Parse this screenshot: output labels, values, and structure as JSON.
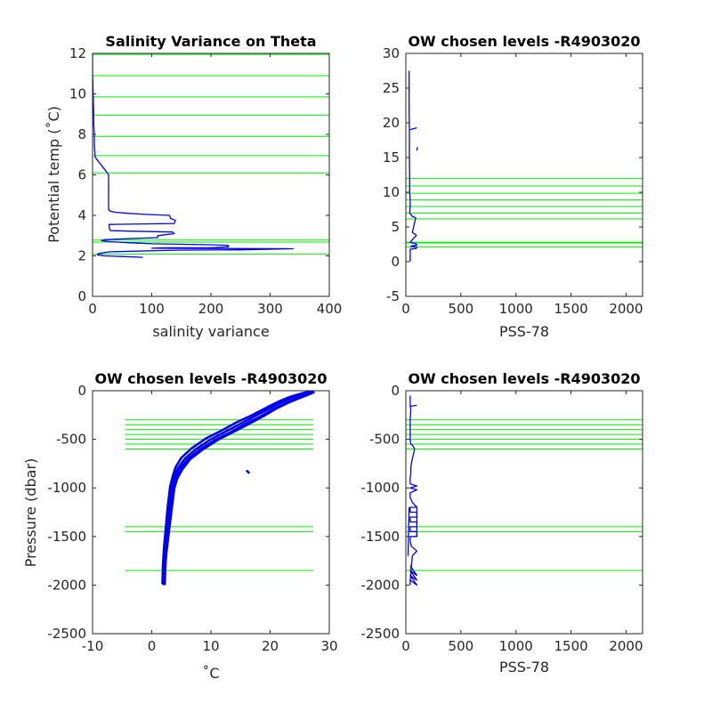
{
  "figure": {
    "background": "#ffffff"
  },
  "colors": {
    "data": "#0000ee",
    "levels": "#00ee00",
    "axis": "#262626"
  },
  "chart_data": [
    {
      "type": "line",
      "title": "Salinity Variance on Theta",
      "xlabel": "salinity variance",
      "ylabel": "Potential temp (˚C)",
      "xlim": [
        0,
        400
      ],
      "ylim": [
        0,
        12
      ],
      "xticks": [
        0,
        100,
        200,
        300,
        400
      ],
      "yticks": [
        0,
        2,
        4,
        6,
        8,
        10,
        12
      ],
      "xtick_labels": [
        "0",
        "100",
        "200",
        "300",
        "400"
      ],
      "ytick_labels": [
        "0",
        "2",
        "4",
        "6",
        "8",
        "10",
        "12"
      ],
      "grid": false,
      "series": [
        {
          "x": [
            0,
            0,
            1,
            2,
            2,
            3,
            3,
            4,
            5,
            25,
            27,
            27,
            27,
            30,
            40,
            60,
            90,
            130,
            132,
            140,
            138,
            28,
            28,
            30,
            60,
            100,
            135,
            138,
            110,
            110,
            60,
            20,
            15,
            30,
            60,
            100,
            200,
            229,
            230,
            200,
            120,
            100,
            150,
            250,
            339,
            250,
            140,
            30,
            10,
            8,
            20,
            50,
            85
          ],
          "y": [
            12,
            11,
            10,
            9,
            8.5,
            8,
            7.5,
            7,
            6.85,
            6.1,
            6.0,
            5.0,
            4.3,
            4.2,
            4.15,
            4.1,
            4.05,
            4.0,
            3.85,
            3.75,
            3.6,
            3.55,
            3.4,
            3.25,
            3.22,
            3.2,
            3.18,
            3.1,
            3.0,
            2.9,
            2.85,
            2.8,
            2.75,
            2.7,
            2.65,
            2.6,
            2.55,
            2.52,
            2.45,
            2.4,
            2.4,
            2.38,
            2.37,
            2.36,
            2.35,
            2.3,
            2.28,
            2.2,
            2.12,
            2.05,
            2.0,
            1.97,
            1.93
          ]
        }
      ],
      "hlines": [
        11.95,
        10.9,
        9.85,
        8.95,
        7.9,
        6.95,
        6.1,
        2.78,
        2.68,
        2.08
      ],
      "hline_xrange": [
        0,
        400
      ]
    },
    {
      "type": "line",
      "title": "OW chosen levels -R4903020",
      "xlabel": "PSS-78",
      "ylabel": "",
      "xlim": [
        0,
        2150
      ],
      "ylim": [
        -5,
        30
      ],
      "xticks": [
        0,
        500,
        1000,
        1500,
        2000
      ],
      "yticks": [
        -5,
        0,
        5,
        10,
        15,
        20,
        25,
        30
      ],
      "xtick_labels": [
        "0",
        "500",
        "1000",
        "1500",
        "2000"
      ],
      "ytick_labels": [
        "-5",
        "0",
        "5",
        "10",
        "15",
        "20",
        "25",
        "30"
      ],
      "grid": false,
      "series": [
        {
          "x": [
            30,
            30,
            32,
            32,
            35,
            35,
            40,
            40,
            35,
            50,
            60,
            80,
            90,
            70,
            60,
            80,
            95,
            50,
            40,
            90,
            100,
            60,
            45,
            100,
            95,
            40,
            40
          ],
          "y": [
            27.5,
            22,
            19,
            15,
            12,
            10,
            9,
            8,
            7,
            6.7,
            6.5,
            6.4,
            6.3,
            5,
            4.2,
            4.0,
            3.8,
            3.0,
            2.8,
            2.6,
            2.4,
            2.3,
            2.2,
            2.1,
            1.9,
            1.8,
            0
          ]
        },
        {
          "x": [
            40,
            100
          ],
          "y": [
            19,
            19.3
          ]
        },
        {
          "x": [
            100,
            105
          ],
          "y": [
            16,
            16.5
          ]
        }
      ],
      "hlines": [
        12.0,
        10.9,
        9.85,
        8.9,
        7.95,
        7.0,
        6.15,
        2.8,
        2.7,
        2.1
      ],
      "hline_xrange": [
        0,
        2150
      ]
    },
    {
      "type": "line",
      "title": "OW chosen levels -R4903020",
      "xlabel": "˚C",
      "ylabel": "Pressure (dbar)",
      "xlim": [
        -10,
        30
      ],
      "ylim": [
        -2500,
        0
      ],
      "xticks": [
        -10,
        0,
        10,
        20,
        30
      ],
      "yticks": [
        -2500,
        -2000,
        -1500,
        -1000,
        -500,
        0
      ],
      "xtick_labels": [
        "-10",
        "0",
        "10",
        "20",
        "30"
      ],
      "ytick_labels": [
        "-2500",
        "-2000",
        "-1500",
        "-1000",
        "-500",
        "0"
      ],
      "grid": false,
      "series": [
        {
          "x": [
            2.0,
            2.1,
            2.3,
            2.6,
            2.9,
            3.3,
            3.7,
            4.4,
            5.6,
            7.5,
            10,
            12.5,
            15,
            17.5,
            20,
            22,
            24,
            26,
            27
          ],
          "y": [
            -2000,
            -1800,
            -1600,
            -1400,
            -1200,
            -1000,
            -900,
            -800,
            -700,
            -600,
            -500,
            -420,
            -340,
            -260,
            -180,
            -120,
            -70,
            -30,
            -10
          ]
        },
        {
          "x": [
            1.8,
            1.9,
            2.1,
            2.4,
            2.7,
            3.1,
            3.5,
            4.0,
            5.0,
            6.8,
            9.2,
            11.8,
            14.2,
            17,
            19.5,
            21.5,
            23.5,
            25.5,
            27.2
          ],
          "y": [
            -1990,
            -1790,
            -1590,
            -1390,
            -1190,
            -990,
            -890,
            -790,
            -690,
            -590,
            -490,
            -410,
            -330,
            -250,
            -170,
            -110,
            -60,
            -25,
            -5
          ]
        },
        {
          "x": [
            2.2,
            2.3,
            2.5,
            2.8,
            3.1,
            3.5,
            3.9,
            4.7,
            6.0,
            8.0,
            10.6,
            13.2,
            15.6,
            18.2,
            20.6,
            22.6,
            24.6,
            26.4,
            27.4
          ],
          "y": [
            -2000,
            -1810,
            -1610,
            -1410,
            -1210,
            -1010,
            -910,
            -810,
            -710,
            -610,
            -510,
            -430,
            -350,
            -270,
            -190,
            -130,
            -80,
            -35,
            -15
          ]
        },
        {
          "x": [
            2.0,
            2.2,
            2.6,
            3.0,
            3.4,
            3.8,
            4.3,
            5.2,
            6.5,
            8.6,
            11.2,
            13.8,
            16.3,
            18.8,
            21,
            23,
            25,
            26.8,
            27.5
          ],
          "y": [
            -1985,
            -1805,
            -1605,
            -1405,
            -1205,
            -1005,
            -905,
            -805,
            -705,
            -605,
            -505,
            -425,
            -345,
            -265,
            -185,
            -125,
            -75,
            -32,
            -12
          ]
        },
        {
          "x": [
            16,
            16.5
          ],
          "y": [
            -820,
            -850
          ]
        }
      ],
      "hlines": [
        -300,
        -350,
        -400,
        -450,
        -500,
        -550,
        -600,
        -1400,
        -1450,
        -1850
      ],
      "hline_xrange": [
        -4.5,
        27.3
      ]
    },
    {
      "type": "line",
      "title": "OW chosen levels -R4903020",
      "xlabel": "PSS-78",
      "ylabel": "",
      "xlim": [
        0,
        2150
      ],
      "ylim": [
        -2500,
        0
      ],
      "xticks": [
        0,
        500,
        1000,
        1500,
        2000
      ],
      "yticks": [
        -2500,
        -2000,
        -1500,
        -1000,
        -500,
        0
      ],
      "xtick_labels": [
        "0",
        "500",
        "1000",
        "1500",
        "2000"
      ],
      "ytick_labels": [
        "-2500",
        "-2000",
        "-1500",
        "-1000",
        "-500",
        "0"
      ],
      "grid": false,
      "series": [
        {
          "x": [
            40,
            40,
            45,
            45,
            50,
            60,
            100,
            50,
            40,
            40,
            100,
            100,
            40,
            40,
            100,
            100,
            40,
            40,
            100,
            100,
            40,
            40,
            100,
            60,
            40,
            40,
            100,
            40,
            100,
            40
          ],
          "y": [
            -2000,
            -1950,
            -1900,
            -1850,
            -1800,
            -1700,
            -1650,
            -1600,
            -1550,
            -1500,
            -1500,
            -1450,
            -1450,
            -1400,
            -1400,
            -1350,
            -1350,
            -1300,
            -1300,
            -1250,
            -1250,
            -1200,
            -1200,
            -1150,
            -1100,
            -1050,
            -1020,
            -1000,
            -980,
            -960
          ]
        },
        {
          "x": [
            40,
            40,
            45,
            45,
            50,
            60,
            80,
            60,
            45,
            40,
            40,
            40,
            45,
            40,
            40
          ],
          "y": [
            -960,
            -900,
            -850,
            -800,
            -750,
            -700,
            -600,
            -560,
            -550,
            -500,
            -400,
            -300,
            -200,
            -150,
            -50
          ]
        },
        {
          "x": [
            40,
            100
          ],
          "y": [
            -160,
            -150
          ]
        },
        {
          "x": [
            40,
            100,
            40,
            100,
            40,
            100,
            40,
            100
          ],
          "y": [
            -1800,
            -1900,
            -1850,
            -1950,
            -1900,
            -2000,
            -1950,
            -2000
          ]
        },
        {
          "x": [
            20,
            30
          ],
          "y": [
            -1700,
            -1200
          ]
        },
        {
          "x": [
            100,
            100
          ],
          "y": [
            -1200,
            -1500
          ]
        }
      ],
      "hlines": [
        -300,
        -350,
        -400,
        -450,
        -500,
        -550,
        -600,
        -1400,
        -1450,
        -1850
      ],
      "hline_xrange": [
        0,
        2150
      ]
    }
  ]
}
